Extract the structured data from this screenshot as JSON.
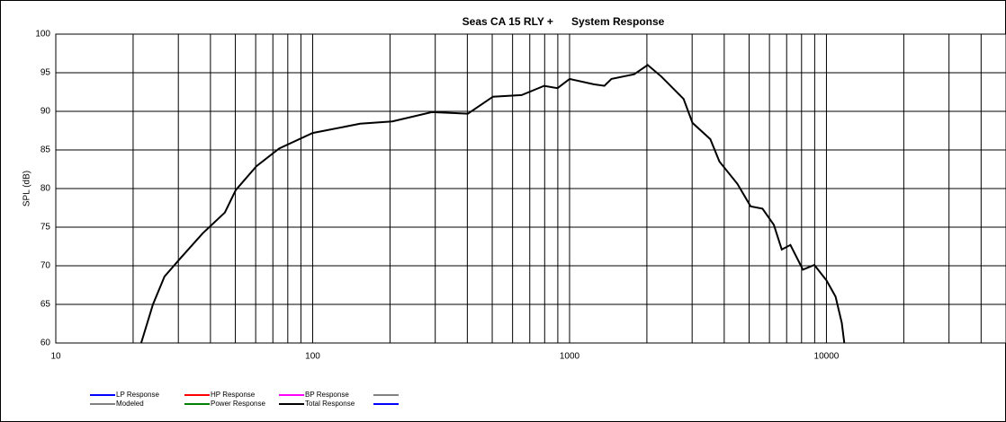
{
  "chart_data": {
    "type": "line",
    "title": "Seas CA 15 RLY +      System Response",
    "y_label": "SPL (dB)",
    "x_log": true,
    "grid": true,
    "xlim": [
      10,
      50000
    ],
    "xticks": [
      10,
      100,
      1000,
      10000
    ],
    "x_minor_ticks": [
      20,
      30,
      40,
      50,
      60,
      70,
      80,
      90,
      200,
      300,
      400,
      500,
      600,
      700,
      800,
      900,
      2000,
      3000,
      4000,
      5000,
      6000,
      7000,
      8000,
      9000,
      20000,
      30000,
      40000
    ],
    "ylim": [
      60,
      100
    ],
    "yticks": [
      60,
      65,
      70,
      75,
      80,
      85,
      90,
      95,
      100
    ],
    "x": [
      21.5,
      23.9,
      26.5,
      30.4,
      37.3,
      45.5,
      50.2,
      60.4,
      74.1,
      100,
      153,
      204,
      291,
      402,
      503,
      651,
      796,
      898,
      1000,
      1243,
      1367,
      1456,
      1785,
      2014,
      2277,
      2779,
      3011,
      3530,
      3832,
      4500,
      5070,
      5640,
      6240,
      6700,
      7240,
      8100,
      8970,
      10000,
      10850,
      11470,
      11740
    ],
    "series": [
      {
        "name": "LP Response",
        "color": "#0000ff"
      },
      {
        "name": "HP Response",
        "color": "#ff0000"
      },
      {
        "name": "BP Response",
        "color": "#ff00ff"
      },
      {
        "name": null,
        "color": "#808080"
      },
      {
        "name": "Modeled",
        "color": "#808080"
      },
      {
        "name": "Power Response",
        "color": "#008000"
      },
      {
        "name": "Total Response",
        "color": "#000000",
        "values": [
          60,
          65,
          68.6,
          70.9,
          74.2,
          76.9,
          79.8,
          82.9,
          85.2,
          87.2,
          88.4,
          88.7,
          89.9,
          89.7,
          91.9,
          92.1,
          93.3,
          93.0,
          94.2,
          93.5,
          93.3,
          94.2,
          94.8,
          96.0,
          94.5,
          91.6,
          88.5,
          86.4,
          83.5,
          80.6,
          77.7,
          77.4,
          75.3,
          72.1,
          72.7,
          69.5,
          70.1,
          68.1,
          66.0,
          62.6,
          60
        ]
      },
      {
        "name": null,
        "color": "#0000ff"
      }
    ]
  }
}
